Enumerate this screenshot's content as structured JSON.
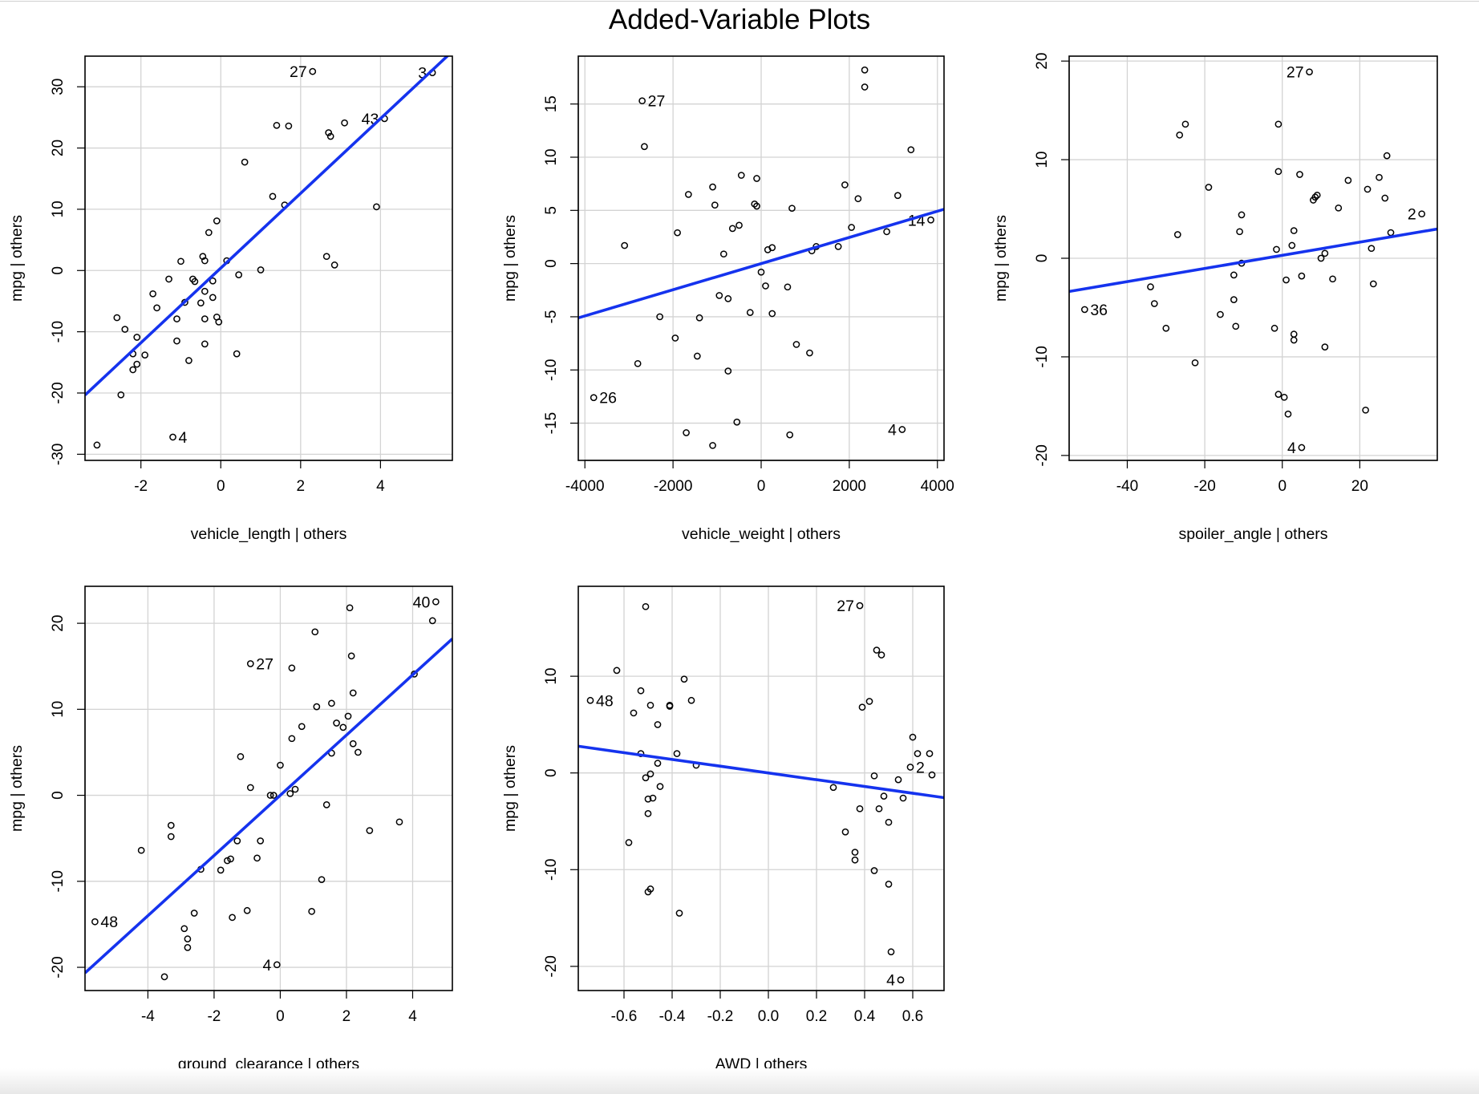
{
  "figure": {
    "title": "Added-Variable Plots"
  },
  "chart_data": [
    {
      "type": "scatter",
      "xlabel": "vehicle_length | others",
      "ylabel": "mpg  | others",
      "xlim": [
        -3.4,
        5.8
      ],
      "ylim": [
        -31,
        35
      ],
      "xticks": [
        -2,
        0,
        2,
        4
      ],
      "xtick_labels": [
        "-2",
        "0",
        "2",
        "4"
      ],
      "yticks": [
        -30,
        -20,
        -10,
        0,
        10,
        20,
        30
      ],
      "ytick_labels": [
        "-30",
        "-20",
        "-10",
        "0",
        "10",
        "20",
        "30"
      ],
      "grid": true,
      "fit_line": {
        "intercept": 0.4,
        "slope": 6.1
      },
      "points": [
        [
          -3.1,
          -28.5
        ],
        [
          -1.2,
          -27.2
        ],
        [
          -2.5,
          -20.3
        ],
        [
          -2.2,
          -16.2
        ],
        [
          -2.1,
          -15.3
        ],
        [
          -1.9,
          -13.8
        ],
        [
          -2.2,
          -13.6
        ],
        [
          -2.1,
          -10.9
        ],
        [
          -2.4,
          -9.6
        ],
        [
          -2.6,
          -7.7
        ],
        [
          -1.6,
          -6.1
        ],
        [
          -1.7,
          -3.8
        ],
        [
          -1.1,
          -11.5
        ],
        [
          -0.8,
          -14.7
        ],
        [
          -0.4,
          -12.0
        ],
        [
          -1.1,
          -7.9
        ],
        [
          -0.9,
          -5.2
        ],
        [
          -0.4,
          -7.9
        ],
        [
          -0.05,
          -8.4
        ],
        [
          -0.1,
          -7.6
        ],
        [
          -0.2,
          -4.4
        ],
        [
          -0.4,
          -3.4
        ],
        [
          -0.5,
          -5.3
        ],
        [
          -1.3,
          -1.4
        ],
        [
          -0.7,
          -1.4
        ],
        [
          -0.65,
          -1.8
        ],
        [
          -0.2,
          -1.7
        ],
        [
          -1.0,
          1.5
        ],
        [
          -0.45,
          2.3
        ],
        [
          -0.4,
          1.6
        ],
        [
          0.15,
          1.6
        ],
        [
          0.45,
          -0.7
        ],
        [
          1.0,
          0.1
        ],
        [
          -0.1,
          8.1
        ],
        [
          -0.3,
          6.2
        ],
        [
          0.4,
          -13.6
        ],
        [
          0.6,
          17.7
        ],
        [
          1.3,
          12.1
        ],
        [
          1.6,
          10.7
        ],
        [
          1.4,
          23.7
        ],
        [
          1.7,
          23.6
        ],
        [
          2.7,
          22.5
        ],
        [
          2.75,
          21.9
        ],
        [
          3.1,
          24.1
        ],
        [
          2.3,
          32.5
        ],
        [
          2.65,
          2.3
        ],
        [
          2.85,
          0.9
        ],
        [
          3.9,
          10.4
        ],
        [
          4.1,
          24.8
        ],
        [
          5.3,
          32.3
        ]
      ],
      "point_labels": [
        {
          "text": "27",
          "x": 2.3,
          "y": 32.5,
          "side": "left"
        },
        {
          "text": "3",
          "x": 5.3,
          "y": 32.3,
          "side": "left"
        },
        {
          "text": "43",
          "x": 4.1,
          "y": 24.8,
          "side": "left"
        },
        {
          "text": "4",
          "x": -1.2,
          "y": -27.2,
          "side": "right"
        }
      ]
    },
    {
      "type": "scatter",
      "xlabel": "vehicle_weight | others",
      "ylabel": "mpg  | others",
      "xlim": [
        -4150,
        4150
      ],
      "ylim": [
        -18.5,
        19.5
      ],
      "xticks": [
        -4000,
        -2000,
        0,
        2000,
        4000
      ],
      "xtick_labels": [
        "-4000",
        "-2000",
        "0",
        "2000",
        "4000"
      ],
      "yticks": [
        -15,
        -10,
        -5,
        0,
        5,
        10,
        15
      ],
      "ytick_labels": [
        "-15",
        "-10",
        "-5",
        "0",
        "5",
        "10",
        "15"
      ],
      "grid": true,
      "fit_line": {
        "intercept": 0.0,
        "slope": 0.00123
      },
      "points": [
        [
          -3800,
          -12.6
        ],
        [
          -2800,
          -9.4
        ],
        [
          -3100,
          1.7
        ],
        [
          -2700,
          15.3
        ],
        [
          -2650,
          11.0
        ],
        [
          -2300,
          -5.0
        ],
        [
          -1950,
          -7.0
        ],
        [
          -1900,
          2.9
        ],
        [
          -1650,
          6.5
        ],
        [
          -1700,
          -15.9
        ],
        [
          -1450,
          -8.7
        ],
        [
          -1400,
          -5.1
        ],
        [
          -1100,
          7.2
        ],
        [
          -1050,
          5.5
        ],
        [
          -950,
          -3.0
        ],
        [
          -850,
          0.9
        ],
        [
          -750,
          -3.3
        ],
        [
          -750,
          -10.1
        ],
        [
          -650,
          3.3
        ],
        [
          -500,
          3.6
        ],
        [
          -450,
          8.3
        ],
        [
          -550,
          -14.9
        ],
        [
          -1100,
          -17.1
        ],
        [
          -250,
          -4.6
        ],
        [
          -100,
          8.0
        ],
        [
          -150,
          5.6
        ],
        [
          -100,
          5.4
        ],
        [
          0,
          -0.8
        ],
        [
          100,
          -2.1
        ],
        [
          150,
          1.3
        ],
        [
          250,
          1.5
        ],
        [
          250,
          -4.7
        ],
        [
          600,
          -2.2
        ],
        [
          700,
          5.2
        ],
        [
          800,
          -7.6
        ],
        [
          650,
          -16.1
        ],
        [
          1100,
          -8.4
        ],
        [
          1150,
          1.2
        ],
        [
          1250,
          1.6
        ],
        [
          1750,
          1.6
        ],
        [
          1900,
          7.4
        ],
        [
          2050,
          3.4
        ],
        [
          2200,
          6.1
        ],
        [
          2350,
          18.2
        ],
        [
          2350,
          16.6
        ],
        [
          2850,
          3.0
        ],
        [
          3100,
          6.4
        ],
        [
          3400,
          10.7
        ],
        [
          3850,
          4.1
        ],
        [
          3200,
          -15.6
        ]
      ],
      "point_labels": [
        {
          "text": "27",
          "x": -2700,
          "y": 15.3,
          "side": "right"
        },
        {
          "text": "26",
          "x": -3800,
          "y": -12.6,
          "side": "right"
        },
        {
          "text": "14",
          "x": 3850,
          "y": 4.1,
          "side": "left"
        },
        {
          "text": "4",
          "x": 3200,
          "y": -15.6,
          "side": "left"
        }
      ]
    },
    {
      "type": "scatter",
      "xlabel": "spoiler_angle | others",
      "ylabel": "mpg  | others",
      "xlim": [
        -55,
        40
      ],
      "ylim": [
        -20.5,
        20.5
      ],
      "xticks": [
        -40,
        -20,
        0,
        20
      ],
      "xtick_labels": [
        "-40",
        "-20",
        "0",
        "20"
      ],
      "yticks": [
        -20,
        -10,
        0,
        10,
        20
      ],
      "ytick_labels": [
        "-20",
        "-10",
        "0",
        "10",
        "20"
      ],
      "grid": true,
      "fit_line": {
        "intercept": 0.3,
        "slope": 0.0667
      },
      "points": [
        [
          -51,
          -5.2
        ],
        [
          -34,
          -2.9
        ],
        [
          -33,
          -4.6
        ],
        [
          -30,
          -7.1
        ],
        [
          -27,
          2.4
        ],
        [
          -26.5,
          12.5
        ],
        [
          -25,
          13.6
        ],
        [
          -22.5,
          -10.6
        ],
        [
          -19,
          7.2
        ],
        [
          -16,
          -5.7
        ],
        [
          -12.5,
          -1.7
        ],
        [
          -12.5,
          -4.2
        ],
        [
          -12,
          -6.9
        ],
        [
          -11,
          2.7
        ],
        [
          -10.5,
          4.4
        ],
        [
          -10.5,
          -0.5
        ],
        [
          -2,
          -7.1
        ],
        [
          -1.5,
          0.9
        ],
        [
          -1,
          8.8
        ],
        [
          -1,
          13.6
        ],
        [
          -1,
          -13.8
        ],
        [
          0.5,
          -14.1
        ],
        [
          1,
          -2.2
        ],
        [
          1.5,
          -15.8
        ],
        [
          2.5,
          1.3
        ],
        [
          3,
          -7.7
        ],
        [
          3,
          -8.3
        ],
        [
          3,
          2.8
        ],
        [
          4.5,
          8.5
        ],
        [
          5,
          -1.8
        ],
        [
          5,
          -19.2
        ],
        [
          7,
          18.9
        ],
        [
          8,
          5.9
        ],
        [
          8.5,
          6.2
        ],
        [
          9,
          6.4
        ],
        [
          10,
          0
        ],
        [
          11,
          -9.0
        ],
        [
          11,
          0.5
        ],
        [
          13,
          -2.1
        ],
        [
          14.5,
          5.1
        ],
        [
          17,
          7.9
        ],
        [
          21.5,
          -15.4
        ],
        [
          22,
          7.0
        ],
        [
          23,
          1.0
        ],
        [
          23.5,
          -2.6
        ],
        [
          25,
          8.2
        ],
        [
          26.5,
          6.1
        ],
        [
          27,
          10.4
        ],
        [
          28,
          2.6
        ],
        [
          36,
          4.5
        ]
      ],
      "point_labels": [
        {
          "text": "27",
          "x": 7,
          "y": 18.9,
          "side": "left"
        },
        {
          "text": "2",
          "x": 36,
          "y": 4.5,
          "side": "left"
        },
        {
          "text": "36",
          "x": -51,
          "y": -5.2,
          "side": "right"
        },
        {
          "text": "4",
          "x": 5,
          "y": -19.2,
          "side": "left"
        }
      ]
    },
    {
      "type": "scatter",
      "xlabel": "ground_clearance | others",
      "ylabel": "mpg  | others",
      "xlim": [
        -5.9,
        5.2
      ],
      "ylim": [
        -22.7,
        24.3
      ],
      "xticks": [
        -4,
        -2,
        0,
        2,
        4
      ],
      "xtick_labels": [
        "-4",
        "-2",
        "0",
        "2",
        "4"
      ],
      "yticks": [
        -20,
        -10,
        0,
        10,
        20
      ],
      "ytick_labels": [
        "-20",
        "-10",
        "0",
        "10",
        "20"
      ],
      "grid": true,
      "fit_line": {
        "intercept": 0.0,
        "slope": 3.5
      },
      "points": [
        [
          -5.6,
          -14.7
        ],
        [
          -4.2,
          -6.4
        ],
        [
          -3.5,
          -21.1
        ],
        [
          -3.3,
          -3.5
        ],
        [
          -3.3,
          -4.8
        ],
        [
          -2.9,
          -15.5
        ],
        [
          -2.8,
          -16.7
        ],
        [
          -2.8,
          -17.7
        ],
        [
          -2.6,
          -13.7
        ],
        [
          -2.4,
          -8.6
        ],
        [
          -1.8,
          -8.7
        ],
        [
          -1.6,
          -7.6
        ],
        [
          -1.5,
          -7.4
        ],
        [
          -1.45,
          -14.2
        ],
        [
          -1.3,
          -5.3
        ],
        [
          -1.2,
          4.5
        ],
        [
          -1.0,
          -13.4
        ],
        [
          -0.9,
          0.9
        ],
        [
          -0.9,
          15.3
        ],
        [
          -0.7,
          -7.3
        ],
        [
          -0.6,
          -5.3
        ],
        [
          -0.3,
          0
        ],
        [
          -0.2,
          0
        ],
        [
          -0.1,
          -19.7
        ],
        [
          0,
          3.5
        ],
        [
          0.3,
          0.2
        ],
        [
          0.35,
          6.6
        ],
        [
          0.35,
          14.8
        ],
        [
          0.45,
          0.7
        ],
        [
          0.65,
          8.0
        ],
        [
          0.95,
          -13.5
        ],
        [
          1.05,
          19.0
        ],
        [
          1.1,
          10.3
        ],
        [
          1.25,
          -9.8
        ],
        [
          1.4,
          -1.1
        ],
        [
          1.55,
          4.9
        ],
        [
          1.55,
          10.7
        ],
        [
          1.7,
          8.4
        ],
        [
          1.9,
          7.9
        ],
        [
          2.05,
          9.2
        ],
        [
          2.1,
          21.8
        ],
        [
          2.15,
          16.2
        ],
        [
          2.2,
          11.9
        ],
        [
          2.2,
          6.0
        ],
        [
          2.35,
          5.0
        ],
        [
          2.7,
          -4.1
        ],
        [
          3.6,
          -3.1
        ],
        [
          4.05,
          14.1
        ],
        [
          4.6,
          20.3
        ],
        [
          4.7,
          22.5
        ]
      ],
      "point_labels": [
        {
          "text": "40",
          "x": 4.7,
          "y": 22.5,
          "side": "left"
        },
        {
          "text": "27",
          "x": -0.9,
          "y": 15.3,
          "side": "right"
        },
        {
          "text": "48",
          "x": -5.6,
          "y": -14.7,
          "side": "right"
        },
        {
          "text": "4",
          "x": -0.1,
          "y": -19.7,
          "side": "left"
        }
      ]
    },
    {
      "type": "scatter",
      "xlabel": "AWD | others",
      "ylabel": "mpg  | others",
      "xlim": [
        -0.79,
        0.73
      ],
      "ylim": [
        -22.5,
        19.3
      ],
      "xticks": [
        -0.6,
        -0.4,
        -0.2,
        0.0,
        0.2,
        0.4,
        0.6
      ],
      "xtick_labels": [
        "-0.6",
        "-0.4",
        "-0.2",
        "0.0",
        "0.2",
        "0.4",
        "0.6"
      ],
      "yticks": [
        -20,
        -10,
        0,
        10
      ],
      "ytick_labels": [
        "-20",
        "-10",
        "0",
        "10"
      ],
      "grid": true,
      "fit_line": {
        "intercept": 0.0,
        "slope": -3.5
      },
      "points": [
        [
          -0.74,
          7.5
        ],
        [
          -0.63,
          10.6
        ],
        [
          -0.58,
          -7.2
        ],
        [
          -0.56,
          6.2
        ],
        [
          -0.53,
          8.5
        ],
        [
          -0.53,
          2.0
        ],
        [
          -0.51,
          17.2
        ],
        [
          -0.51,
          -0.5
        ],
        [
          -0.5,
          -4.2
        ],
        [
          -0.5,
          -2.7
        ],
        [
          -0.5,
          -12.3
        ],
        [
          -0.49,
          -12.0
        ],
        [
          -0.49,
          7.0
        ],
        [
          -0.49,
          -0.1
        ],
        [
          -0.48,
          -2.6
        ],
        [
          -0.46,
          5.0
        ],
        [
          -0.46,
          1.0
        ],
        [
          -0.45,
          -1.4
        ],
        [
          -0.41,
          7.0
        ],
        [
          -0.41,
          6.9
        ],
        [
          -0.38,
          2.0
        ],
        [
          -0.37,
          -14.5
        ],
        [
          -0.35,
          9.7
        ],
        [
          -0.32,
          7.5
        ],
        [
          -0.3,
          0.8
        ],
        [
          0.27,
          -1.5
        ],
        [
          0.32,
          -6.1
        ],
        [
          0.36,
          -9.0
        ],
        [
          0.36,
          -8.2
        ],
        [
          0.38,
          -3.7
        ],
        [
          0.38,
          17.3
        ],
        [
          0.39,
          6.8
        ],
        [
          0.42,
          7.4
        ],
        [
          0.44,
          -0.3
        ],
        [
          0.44,
          -10.1
        ],
        [
          0.45,
          12.7
        ],
        [
          0.46,
          -3.7
        ],
        [
          0.47,
          12.2
        ],
        [
          0.48,
          -2.4
        ],
        [
          0.5,
          -11.5
        ],
        [
          0.5,
          -5.1
        ],
        [
          0.51,
          -18.5
        ],
        [
          0.54,
          -0.7
        ],
        [
          0.55,
          -21.4
        ],
        [
          0.56,
          -2.6
        ],
        [
          0.59,
          0.6
        ],
        [
          0.6,
          3.7
        ],
        [
          0.62,
          2.0
        ],
        [
          0.67,
          2.0
        ],
        [
          0.68,
          -0.2
        ]
      ],
      "point_labels": [
        {
          "text": "27",
          "x": 0.38,
          "y": 17.3,
          "side": "left"
        },
        {
          "text": "48",
          "x": -0.74,
          "y": 7.5,
          "side": "right"
        },
        {
          "text": "2",
          "x": 0.59,
          "y": 0.6,
          "side": "right"
        },
        {
          "text": "4",
          "x": 0.55,
          "y": -21.4,
          "side": "left"
        }
      ]
    }
  ]
}
